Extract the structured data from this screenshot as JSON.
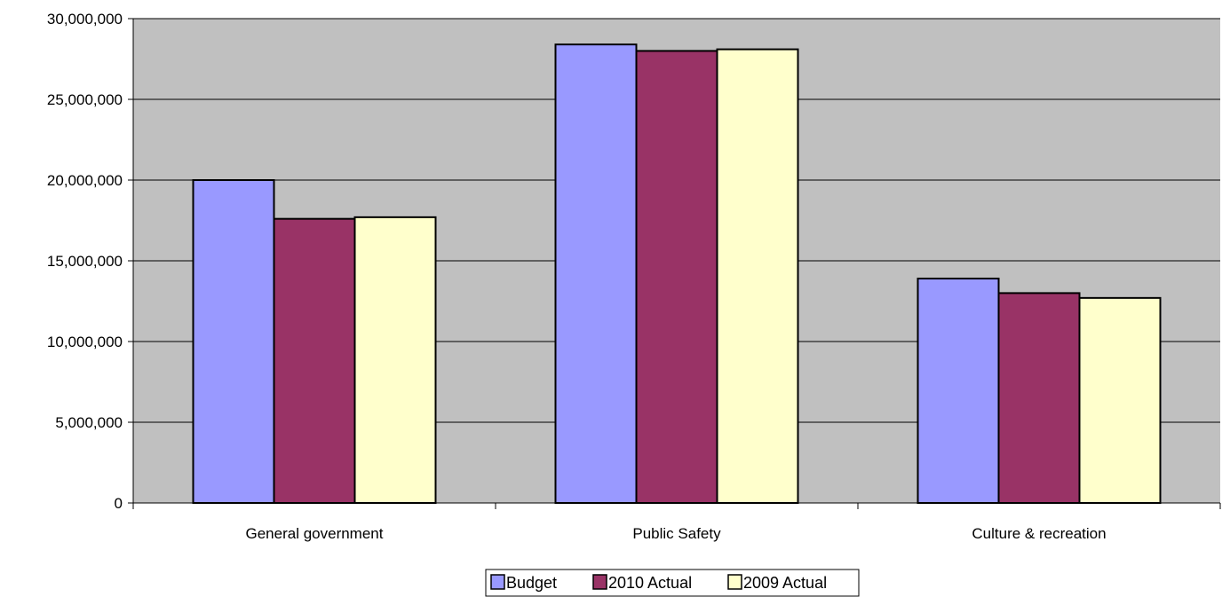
{
  "chart_data": {
    "type": "bar",
    "title": "",
    "xlabel": "",
    "ylabel": "",
    "ylim": [
      0,
      30000000
    ],
    "ytick_step": 5000000,
    "ytick_labels": [
      "0",
      "5,000,000",
      "10,000,000",
      "15,000,000",
      "20,000,000",
      "25,000,000",
      "30,000,000"
    ],
    "categories": [
      "General government",
      "Public Safety",
      "Culture & recreation"
    ],
    "series": [
      {
        "name": "Budget",
        "color": "#9999ff",
        "values": [
          20000000,
          28400000,
          13900000
        ]
      },
      {
        "name": "2010 Actual",
        "color": "#993366",
        "values": [
          17600000,
          28000000,
          13000000
        ]
      },
      {
        "name": "2009 Actual",
        "color": "#ffffcc",
        "values": [
          17700000,
          28100000,
          12700000
        ]
      }
    ],
    "grid": true,
    "plot_background": "#c0c0c0",
    "legend_position": "bottom"
  }
}
